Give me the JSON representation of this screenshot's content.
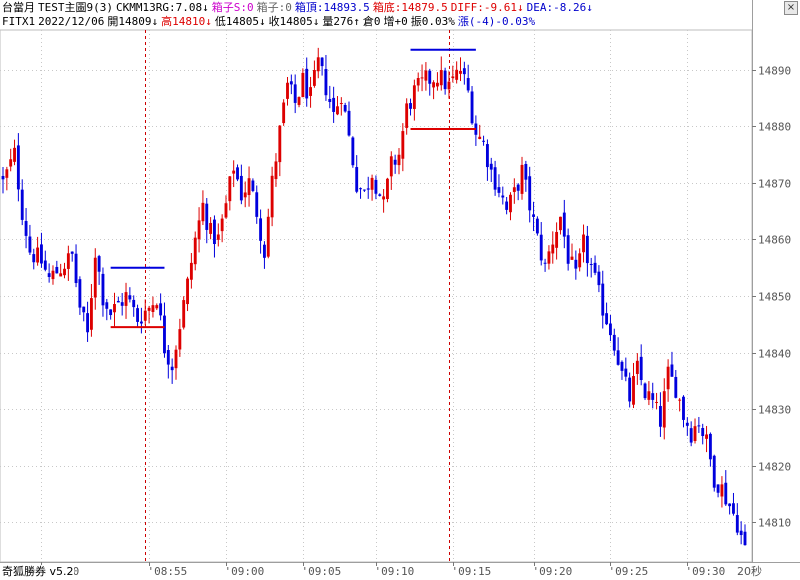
{
  "header": {
    "line1": [
      {
        "text": "台當月",
        "color": "#000000"
      },
      {
        "text": "TEST主圖9(3)",
        "color": "#000000"
      },
      {
        "text": "CKMM13RG:7.08↓",
        "color": "#000000"
      },
      {
        "text": "箱子S:0",
        "color": "#cc00cc"
      },
      {
        "text": "箱子:0",
        "color": "#666666"
      },
      {
        "text": "箱頂:14893.5",
        "color": "#0000cc"
      },
      {
        "text": "箱底:14879.5",
        "color": "#dd0000"
      },
      {
        "text": "DIFF:-9.61↓",
        "color": "#dd0000"
      },
      {
        "text": "DEA:-8.26↓",
        "color": "#0000cc"
      }
    ],
    "line2": [
      {
        "text": "FITX1",
        "color": "#000000"
      },
      {
        "text": "2022/12/06",
        "color": "#000000"
      },
      {
        "text": "開14809↓",
        "color": "#000000"
      },
      {
        "text": "高14810↓",
        "color": "#dd0000"
      },
      {
        "text": "低14805↓",
        "color": "#000000"
      },
      {
        "text": "收14805↓",
        "color": "#000000"
      },
      {
        "text": "量276↑",
        "color": "#000000"
      },
      {
        "text": "倉0",
        "color": "#000000"
      },
      {
        "text": "增+0",
        "color": "#000000"
      },
      {
        "text": "振0.03%",
        "color": "#000000"
      },
      {
        "text": "漲(-4)-0.03%",
        "color": "#0000cc"
      }
    ],
    "close_label": "×"
  },
  "footer": {
    "app_name": "奇狐勝券 v5.2",
    "period": "20秒"
  },
  "chart_data": {
    "type": "candlestick",
    "y_ticks": [
      14810,
      14820,
      14830,
      14840,
      14850,
      14860,
      14870,
      14880,
      14890
    ],
    "ylim": [
      14803,
      14897
    ],
    "x_ticks": [
      "08:50",
      "08:55",
      "09:00",
      "09:05",
      "09:10",
      "09:15",
      "09:20",
      "09:25",
      "09:30"
    ],
    "x_tick_index": [
      10,
      38,
      58,
      78,
      97,
      117,
      138,
      158,
      178
    ],
    "bar_count": 194,
    "up_color": "#dd0000",
    "down_color": "#0000dd",
    "vertical_markers": [
      {
        "index": 37,
        "color": "#cc0000"
      },
      {
        "index": 116,
        "color": "#cc0000"
      }
    ],
    "boxes": [
      {
        "x_start": 28,
        "x_end": 42,
        "top": 14855,
        "bottom": 14844.5,
        "top_color": "#0000dd",
        "bottom_color": "#dd0000"
      },
      {
        "x_start": 106,
        "x_end": 123,
        "top": 14893.5,
        "bottom": 14879.5,
        "top_color": "#0000dd",
        "bottom_color": "#dd0000"
      }
    ],
    "close_path": [
      [
        0,
        14870
      ],
      [
        3,
        14875
      ],
      [
        5,
        14865
      ],
      [
        7,
        14858
      ],
      [
        10,
        14856
      ],
      [
        12,
        14853
      ],
      [
        15,
        14855
      ],
      [
        18,
        14857
      ],
      [
        20,
        14848
      ],
      [
        22,
        14843
      ],
      [
        24,
        14858
      ],
      [
        26,
        14850
      ],
      [
        28,
        14847
      ],
      [
        32,
        14850
      ],
      [
        35,
        14846
      ],
      [
        38,
        14848
      ],
      [
        40,
        14850
      ],
      [
        42,
        14841
      ],
      [
        44,
        14838
      ],
      [
        46,
        14845
      ],
      [
        48,
        14852
      ],
      [
        50,
        14860
      ],
      [
        52,
        14866
      ],
      [
        54,
        14861
      ],
      [
        56,
        14860
      ],
      [
        58,
        14866
      ],
      [
        60,
        14873
      ],
      [
        62,
        14868
      ],
      [
        64,
        14870
      ],
      [
        66,
        14865
      ],
      [
        68,
        14858
      ],
      [
        70,
        14870
      ],
      [
        72,
        14879
      ],
      [
        74,
        14887
      ],
      [
        76,
        14884
      ],
      [
        78,
        14888
      ],
      [
        80,
        14885
      ],
      [
        82,
        14891
      ],
      [
        84,
        14887
      ],
      [
        86,
        14882
      ],
      [
        88,
        14886
      ],
      [
        90,
        14878
      ],
      [
        92,
        14870
      ],
      [
        94,
        14868
      ],
      [
        96,
        14872
      ],
      [
        97,
        14870
      ],
      [
        99,
        14866
      ],
      [
        101,
        14873
      ],
      [
        103,
        14875
      ],
      [
        105,
        14883
      ],
      [
        107,
        14886
      ],
      [
        110,
        14888
      ],
      [
        113,
        14889
      ],
      [
        116,
        14887
      ],
      [
        119,
        14890
      ],
      [
        121,
        14886
      ],
      [
        123,
        14879
      ],
      [
        125,
        14877
      ],
      [
        127,
        14872
      ],
      [
        129,
        14869
      ],
      [
        131,
        14865
      ],
      [
        133,
        14868
      ],
      [
        135,
        14872
      ],
      [
        137,
        14866
      ],
      [
        139,
        14860
      ],
      [
        141,
        14855
      ],
      [
        143,
        14860
      ],
      [
        145,
        14864
      ],
      [
        147,
        14857
      ],
      [
        149,
        14853
      ],
      [
        151,
        14859
      ],
      [
        153,
        14855
      ],
      [
        155,
        14850
      ],
      [
        157,
        14846
      ],
      [
        159,
        14842
      ],
      [
        161,
        14836
      ],
      [
        163,
        14832
      ],
      [
        165,
        14837
      ],
      [
        167,
        14833
      ],
      [
        169,
        14831
      ],
      [
        171,
        14828
      ],
      [
        173,
        14836
      ],
      [
        175,
        14834
      ],
      [
        177,
        14829
      ],
      [
        179,
        14826
      ],
      [
        181,
        14828
      ],
      [
        183,
        14824
      ],
      [
        185,
        14818
      ],
      [
        187,
        14816
      ],
      [
        189,
        14813
      ],
      [
        191,
        14810
      ],
      [
        193,
        14805
      ]
    ]
  }
}
